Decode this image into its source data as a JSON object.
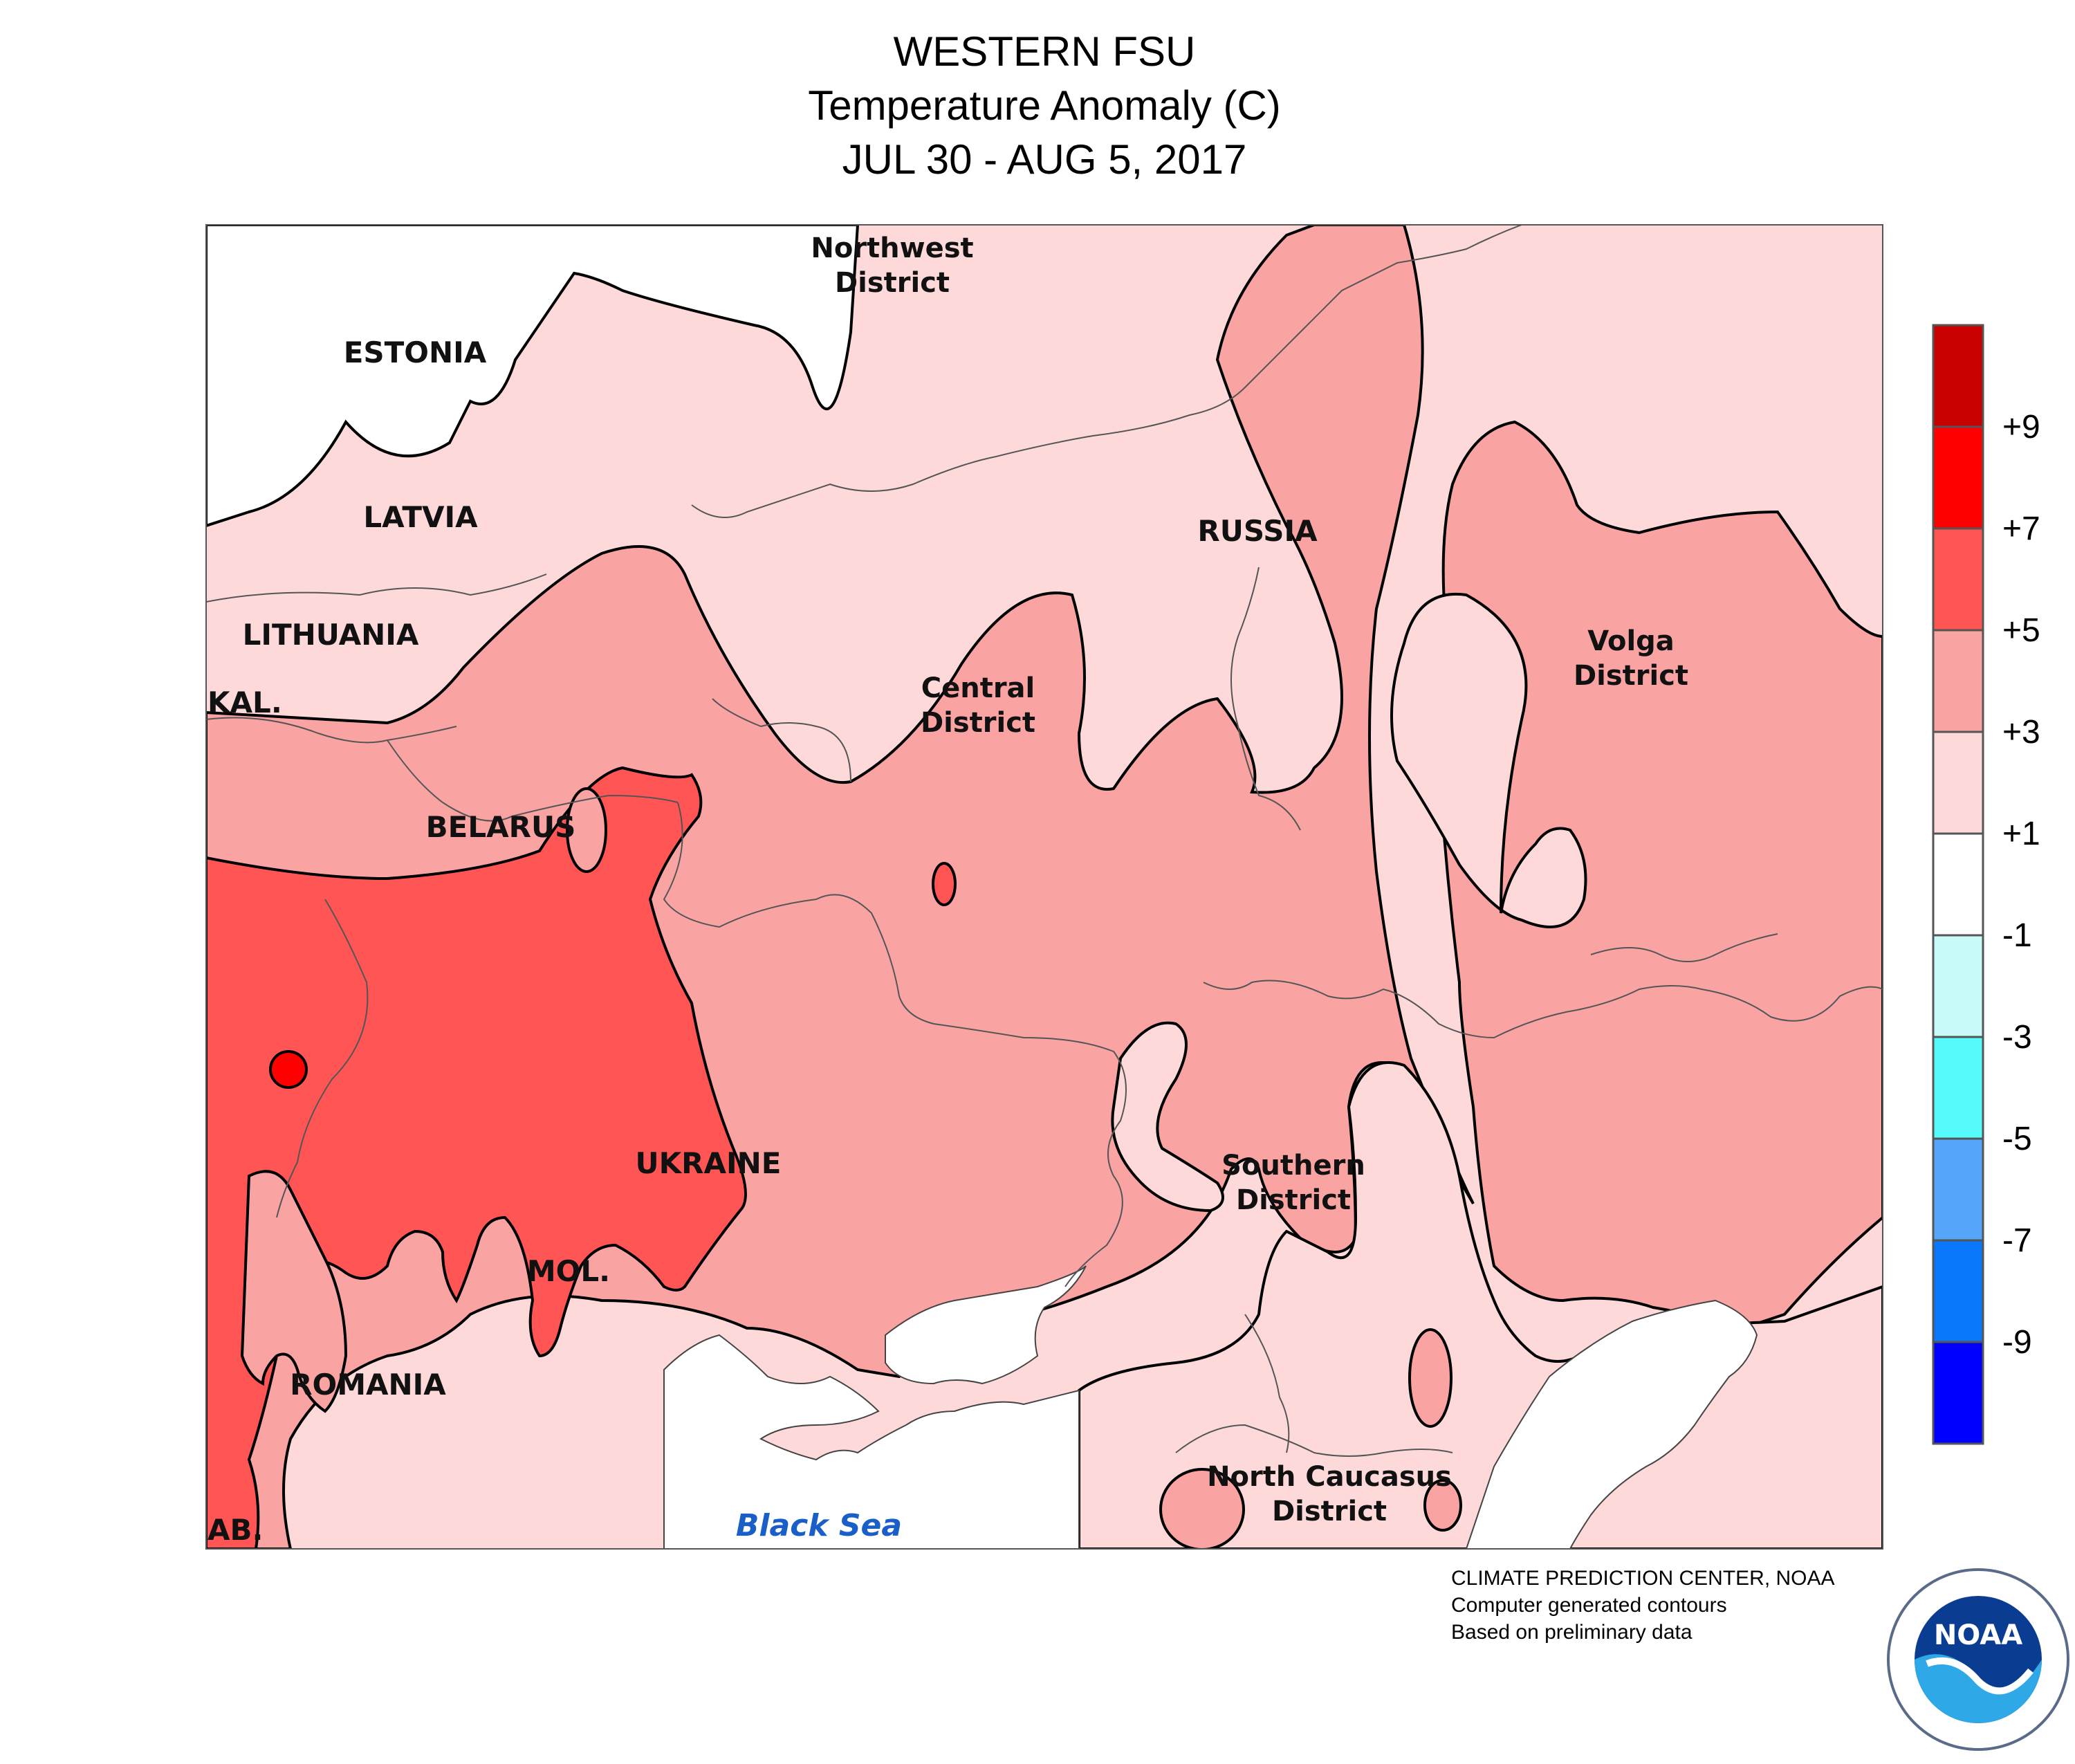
{
  "title": {
    "line1": "WESTERN FSU",
    "line2": "Temperature Anomaly (C)",
    "line3": "JUL 30 - AUG 5, 2017"
  },
  "labels": {
    "northwest": [
      "Northwest",
      "District"
    ],
    "central": [
      "Central",
      "District"
    ],
    "volga": [
      "Volga",
      "District"
    ],
    "southern": [
      "Southern",
      "District"
    ],
    "north_caucasus": [
      "North Caucasus",
      "District"
    ],
    "estonia": "ESTONIA",
    "latvia": "LATVIA",
    "lithuania": "LITHUANIA",
    "kal": "KAL.",
    "belarus": "BELARUS",
    "russia": "RUSSIA",
    "ukraine": "UKRAINE",
    "mol": "MOL.",
    "romania": "ROMANIA",
    "ab": "AB.",
    "black_sea": "Black Sea"
  },
  "legend": {
    "colors": [
      "#c80000",
      "#ff0000",
      "#ff5555",
      "#f9a3a3",
      "#fed9d9",
      "#ffffff",
      "#c9fbfb",
      "#55fafa",
      "#55a5fa",
      "#0a78fa",
      "#0000ff"
    ],
    "labels": [
      "+9",
      "+7",
      "+5",
      "+3",
      "+1",
      "-1",
      "-3",
      "-5",
      "-7",
      "-9"
    ]
  },
  "credit": {
    "line1": "CLIMATE PREDICTION CENTER, NOAA",
    "line2": "Computer generated contours",
    "line3": "Based on preliminary data"
  },
  "logo_text": "NOAA"
}
